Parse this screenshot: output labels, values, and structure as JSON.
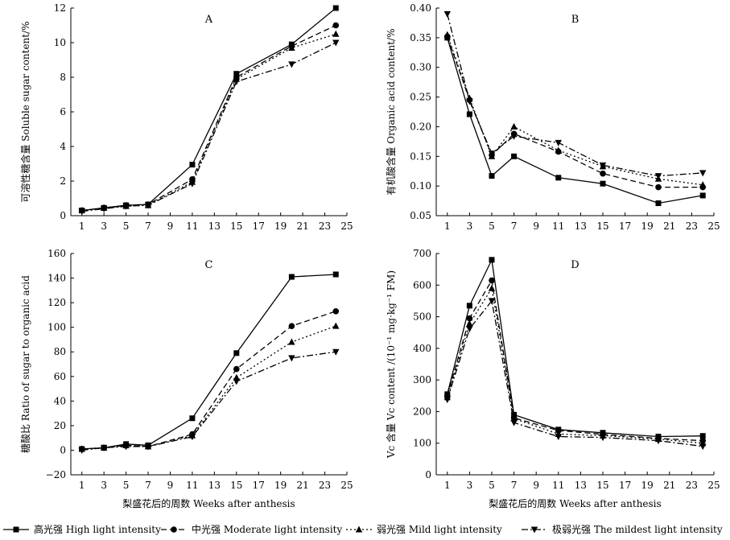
{
  "chart_data": [
    {
      "id": "A",
      "type": "line",
      "title": "A",
      "ylabel": "可溶性糖含量  Soluble sugar content/%",
      "xlabel": "",
      "xlim": [
        0,
        25
      ],
      "ylim": [
        0,
        12
      ],
      "xticks": [
        1,
        3,
        5,
        7,
        9,
        11,
        13,
        15,
        17,
        19,
        21,
        23,
        25
      ],
      "yticks": [
        0,
        2,
        4,
        6,
        8,
        10,
        12
      ],
      "ytick_labels": [
        "0",
        "2",
        "4",
        "6",
        "8",
        "10",
        "12"
      ],
      "x": [
        1,
        3,
        5,
        7,
        11,
        15,
        20,
        24
      ],
      "series": [
        {
          "name": "高光强  High light intensity",
          "values": [
            0.3,
            0.45,
            0.6,
            0.65,
            2.95,
            8.2,
            9.9,
            12.0
          ]
        },
        {
          "name": "中光强  Moderate light intensity",
          "values": [
            0.3,
            0.45,
            0.6,
            0.65,
            2.1,
            8.0,
            9.8,
            11.0
          ]
        },
        {
          "name": "弱光强  Mild light intensity",
          "values": [
            0.3,
            0.45,
            0.55,
            0.6,
            1.95,
            7.9,
            9.7,
            10.5
          ]
        },
        {
          "name": "极弱光强  The mildest light intensity",
          "values": [
            0.25,
            0.4,
            0.55,
            0.6,
            1.85,
            7.75,
            8.75,
            10.0
          ]
        }
      ]
    },
    {
      "id": "B",
      "type": "line",
      "title": "B",
      "ylabel": "有机酸含量  Organic acid content/%",
      "xlabel": "",
      "xlim": [
        0,
        25
      ],
      "ylim": [
        0.05,
        0.4
      ],
      "xticks": [
        1,
        3,
        5,
        7,
        9,
        11,
        13,
        15,
        17,
        19,
        21,
        23,
        25
      ],
      "yticks": [
        0.05,
        0.1,
        0.15,
        0.2,
        0.25,
        0.3,
        0.35,
        0.4
      ],
      "ytick_labels": [
        "0.05",
        "0.10",
        "0.15",
        "0.20",
        "0.25",
        "0.30",
        "0.35",
        "0.40"
      ],
      "x": [
        1,
        3,
        5,
        7,
        11,
        15,
        20,
        24
      ],
      "series": [
        {
          "name": "高光强  High light intensity",
          "values": [
            0.35,
            0.221,
            0.117,
            0.15,
            0.114,
            0.104,
            0.071,
            0.084
          ]
        },
        {
          "name": "中光强  Moderate light intensity",
          "values": [
            0.352,
            0.245,
            0.152,
            0.188,
            0.158,
            0.121,
            0.098,
            0.098
          ]
        },
        {
          "name": "弱光强  Mild light intensity",
          "values": [
            0.355,
            0.248,
            0.15,
            0.2,
            0.16,
            0.133,
            0.112,
            0.102
          ]
        },
        {
          "name": "极弱光强  The mildest light intensity",
          "values": [
            0.39,
            0.243,
            0.155,
            0.184,
            0.173,
            0.135,
            0.117,
            0.122
          ]
        }
      ]
    },
    {
      "id": "C",
      "type": "line",
      "title": "C",
      "ylabel": "糖酸比  Ratio of sugar to organic acid",
      "xlabel": "梨盛花后的周数  Weeks after anthesis",
      "xlim": [
        0,
        25
      ],
      "ylim": [
        -20,
        160
      ],
      "xticks": [
        1,
        3,
        5,
        7,
        9,
        11,
        13,
        15,
        17,
        19,
        21,
        23,
        25
      ],
      "yticks": [
        -20,
        0,
        20,
        40,
        60,
        80,
        100,
        120,
        140,
        160
      ],
      "ytick_labels": [
        "−20",
        "0",
        "20",
        "40",
        "60",
        "80",
        "100",
        "120",
        "140",
        "160"
      ],
      "x": [
        1,
        3,
        5,
        7,
        11,
        15,
        20,
        24
      ],
      "series": [
        {
          "name": "高光强  High light intensity",
          "values": [
            1,
            2,
            5,
            4,
            26,
            79,
            141,
            143
          ]
        },
        {
          "name": "中光强  Moderate light intensity",
          "values": [
            1,
            2,
            4,
            3,
            13,
            66,
            101,
            113
          ]
        },
        {
          "name": "弱光强  Mild light intensity",
          "values": [
            1,
            2,
            4,
            3,
            12,
            59,
            88,
            101
          ]
        },
        {
          "name": "极弱光强  The mildest light intensity",
          "values": [
            0,
            2,
            3,
            3,
            11,
            56,
            75,
            80
          ]
        }
      ]
    },
    {
      "id": "D",
      "type": "line",
      "title": "D",
      "ylabel": "Vc 含量  Vc content /(10⁻¹ mg·kg⁻¹ FM)",
      "xlabel": "梨盛花后的周数  Weeks after anthesis",
      "xlim": [
        0,
        25
      ],
      "ylim": [
        0,
        700
      ],
      "xticks": [
        1,
        3,
        5,
        7,
        9,
        11,
        13,
        15,
        17,
        19,
        21,
        23,
        25
      ],
      "yticks": [
        0,
        100,
        200,
        300,
        400,
        500,
        600,
        700
      ],
      "ytick_labels": [
        "0",
        "100",
        "200",
        "300",
        "400",
        "500",
        "600",
        "700"
      ],
      "x": [
        1,
        3,
        5,
        7,
        11,
        15,
        20,
        24
      ],
      "series": [
        {
          "name": "高光强  High light intensity",
          "values": [
            255,
            535,
            680,
            190,
            143,
            133,
            121,
            123
          ]
        },
        {
          "name": "中光强  Moderate light intensity",
          "values": [
            250,
            495,
            615,
            180,
            140,
            128,
            115,
            108
          ]
        },
        {
          "name": "弱光强  Mild light intensity",
          "values": [
            245,
            478,
            590,
            178,
            129,
            124,
            113,
            100
          ]
        },
        {
          "name": "极弱光强  The mildest light intensity",
          "values": [
            238,
            462,
            550,
            165,
            121,
            118,
            108,
            90
          ]
        }
      ]
    }
  ],
  "legend": [
    {
      "label": "高光强  High light intensity",
      "marker": "square",
      "dash": "solid"
    },
    {
      "label": "中光强  Moderate light intensity",
      "marker": "circle",
      "dash": "dash"
    },
    {
      "label": "弱光强  Mild light intensity",
      "marker": "triangle",
      "dash": "dot"
    },
    {
      "label": "极弱光强  The mildest light intensity",
      "marker": "triangle-down",
      "dash": "dashdot"
    }
  ],
  "colors": {
    "line": "#000000",
    "background": "#ffffff"
  }
}
